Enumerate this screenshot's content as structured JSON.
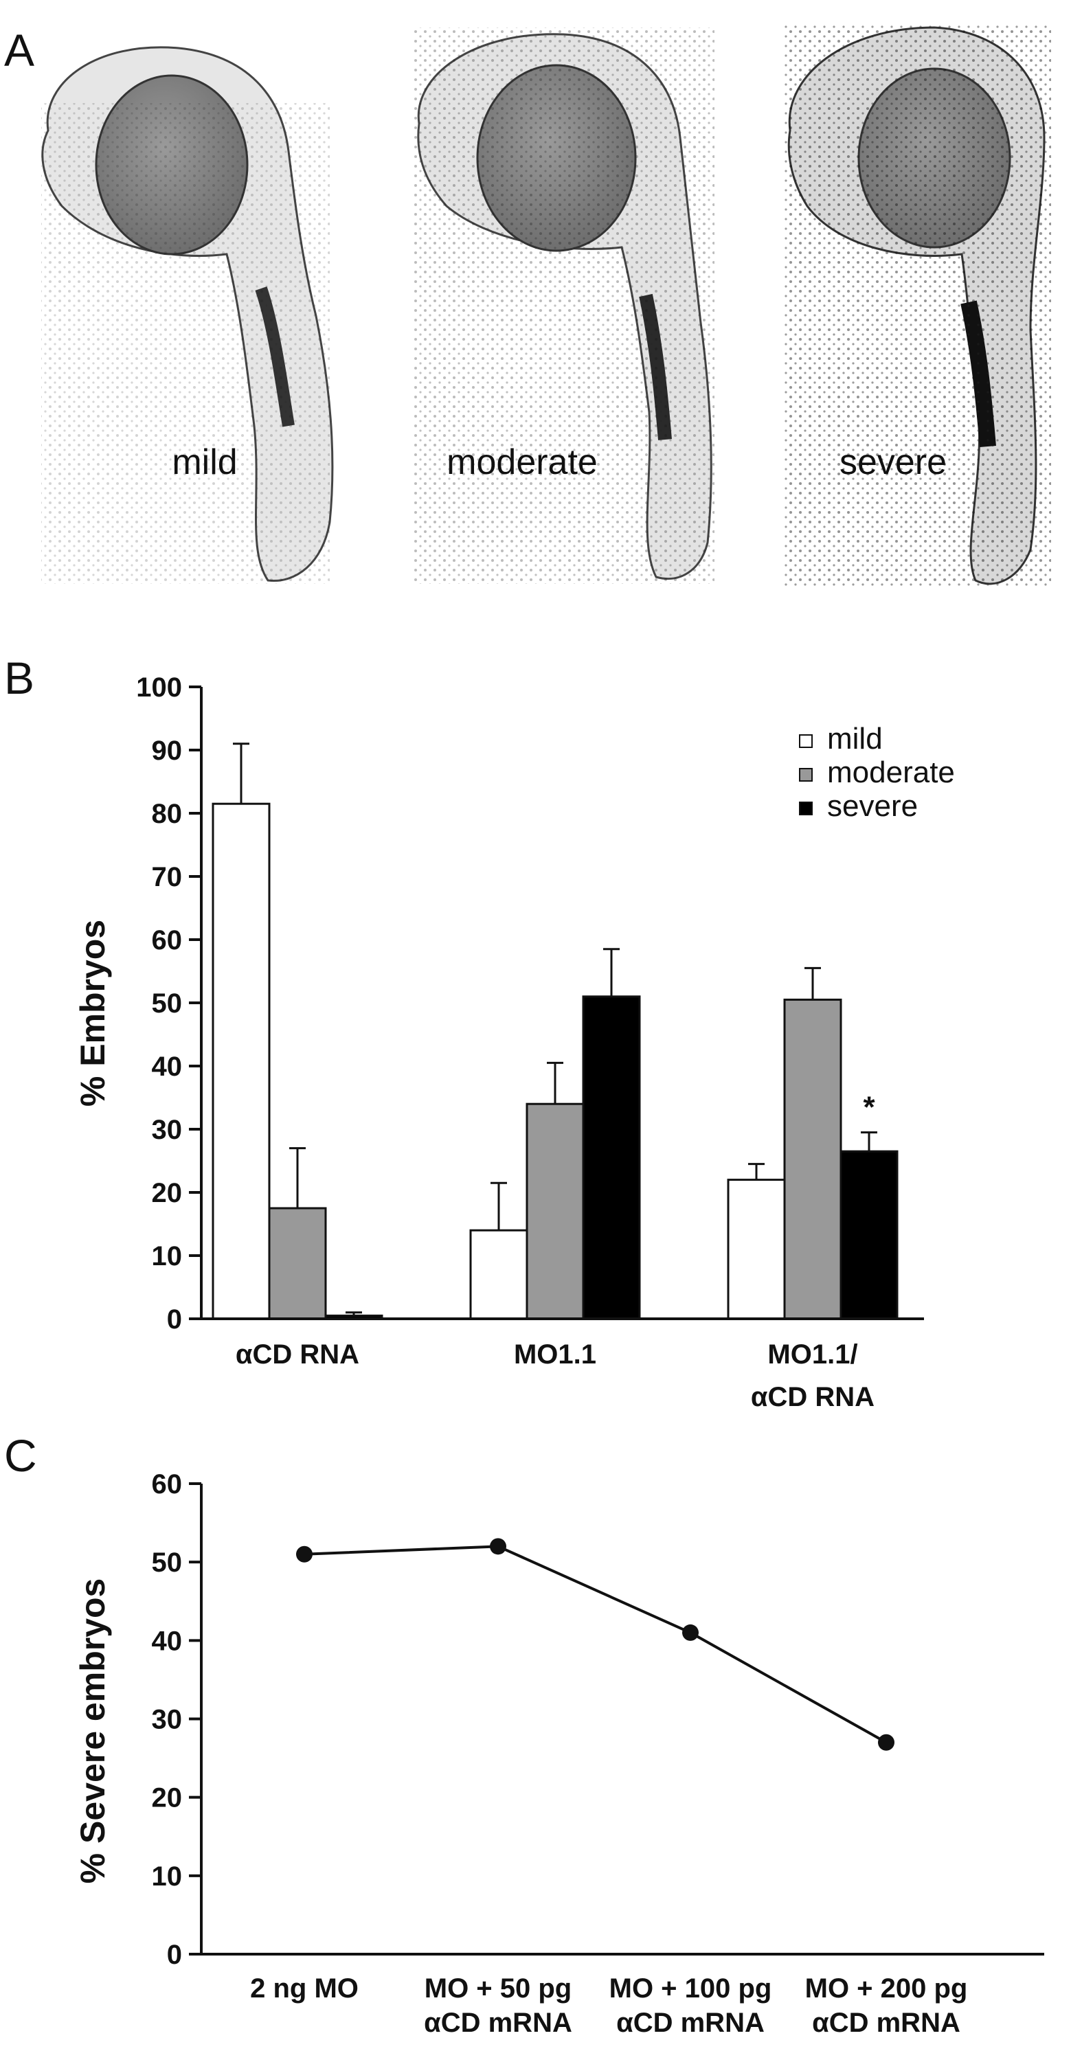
{
  "panels": {
    "a_label": "A",
    "b_label": "B",
    "c_label": "C"
  },
  "panel_a": {
    "phenotypes": [
      "mild",
      "moderate",
      "severe"
    ],
    "image_description": "three zebrafish embryos stained with in situ probe"
  },
  "colors": {
    "mild": "#ffffff",
    "moderate": "#999999",
    "severe": "#000000",
    "axis": "#111111"
  },
  "chart_data": [
    {
      "type": "bar",
      "panel": "B",
      "ylabel": "% Embryos",
      "ylim": [
        0,
        100
      ],
      "yticks": [
        "0",
        "10",
        "20",
        "30",
        "40",
        "50",
        "60",
        "70",
        "80",
        "90",
        "100"
      ],
      "categories": [
        [
          "αCD RNA"
        ],
        [
          "MO1.1"
        ],
        [
          "MO1.1/",
          "αCD RNA"
        ]
      ],
      "series": [
        {
          "name": "mild",
          "values": [
            81.5,
            14,
            22
          ],
          "errors": [
            9.5,
            7.5,
            2.5
          ]
        },
        {
          "name": "moderate",
          "values": [
            17.5,
            34,
            50.5
          ],
          "errors": [
            9.5,
            6.5,
            5
          ]
        },
        {
          "name": "severe",
          "values": [
            0.5,
            51,
            26.5
          ],
          "errors": [
            0.5,
            7.5,
            3
          ]
        }
      ],
      "annotations": [
        {
          "text": "*",
          "category": 2,
          "series": 2
        }
      ],
      "legend_position": "top-right",
      "grid": false
    },
    {
      "type": "line",
      "panel": "C",
      "ylabel": "% Severe embryos",
      "ylim": [
        0,
        60
      ],
      "yticks": [
        "0",
        "10",
        "20",
        "30",
        "40",
        "50",
        "60"
      ],
      "categories": [
        [
          "2 ng MO"
        ],
        [
          "MO + 50 pg",
          "αCD mRNA"
        ],
        [
          "MO + 100 pg",
          "αCD mRNA"
        ],
        [
          "MO + 200 pg",
          "αCD mRNA"
        ]
      ],
      "values": [
        51,
        52,
        41,
        27
      ],
      "grid": false
    }
  ]
}
